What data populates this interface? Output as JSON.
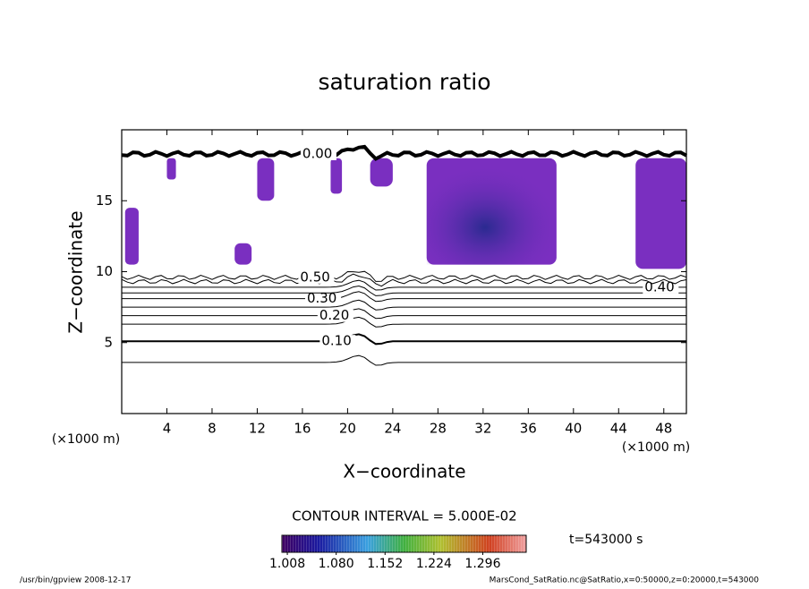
{
  "chart_data": {
    "type": "contour",
    "title": "saturation ratio",
    "xlabel": "X−coordinate",
    "ylabel": "Z−coordinate",
    "x_unit": "(×1000 m)",
    "y_unit": "(×1000 m)",
    "xlim": [
      0,
      50
    ],
    "ylim": [
      0,
      20
    ],
    "xticks": [
      4,
      8,
      12,
      16,
      20,
      24,
      28,
      32,
      36,
      40,
      44,
      48
    ],
    "yticks": [
      5,
      10,
      15
    ],
    "contours": [
      {
        "level": 0.05,
        "z": 3.6
      },
      {
        "level": 0.1,
        "label": "0.10",
        "z": 5.1,
        "label_x": 17.7
      },
      {
        "level": 0.15,
        "z": 6.3
      },
      {
        "level": 0.2,
        "label": "0.20",
        "z": 6.9,
        "label_x": 17.5
      },
      {
        "level": 0.25,
        "z": 7.5
      },
      {
        "level": 0.3,
        "label": "0.30",
        "z": 8.1,
        "label_x": 16.4
      },
      {
        "level": 0.35,
        "z": 8.5
      },
      {
        "level": 0.4,
        "label": "0.40",
        "z": 8.9,
        "label_x": 46.3
      },
      {
        "level": 0.45,
        "z": 9.3
      },
      {
        "level": 0.5,
        "label": "0.50",
        "z": 9.6,
        "label_x": 15.8
      },
      {
        "level": 0,
        "label": "0.00",
        "z": 18.3,
        "label_x": 16.0
      }
    ],
    "filled_color": "#7a2fc0",
    "filled": [
      {
        "x": [
          27,
          38.5
        ],
        "z": [
          10.5,
          18
        ]
      },
      {
        "x": [
          45.5,
          50
        ],
        "z": [
          10.2,
          18
        ]
      },
      {
        "x": [
          0.3,
          1.5
        ],
        "z": [
          10.5,
          14.5
        ]
      },
      {
        "x": [
          4,
          4.8
        ],
        "z": [
          16.5,
          18
        ]
      },
      {
        "x": [
          12,
          13.5
        ],
        "z": [
          15,
          18
        ]
      },
      {
        "x": [
          18.5,
          19.5
        ],
        "z": [
          15.5,
          18
        ]
      },
      {
        "x": [
          22,
          24
        ],
        "z": [
          16,
          18
        ]
      },
      {
        "x": [
          10,
          11.5
        ],
        "z": [
          10.5,
          12
        ]
      }
    ],
    "contour_interval": "CONTOUR INTERVAL = 5.000E-02",
    "time": "t=543000 s",
    "colorbar_lim": [
      1.0,
      1.36
    ],
    "colorbar_ticks": [
      {
        "value": 1.008,
        "label": "1.008"
      },
      {
        "value": 1.08,
        "label": "1.080"
      },
      {
        "value": 1.152,
        "label": "1.152"
      },
      {
        "value": 1.224,
        "label": "1.224"
      },
      {
        "value": 1.296,
        "label": "1.296"
      }
    ],
    "footer_left": "/usr/bin/gpview   2008-12-17",
    "footer_right": "MarsCond_SatRatio.nc@SatRatio,x=0:50000,z=0:20000,t=543000"
  }
}
